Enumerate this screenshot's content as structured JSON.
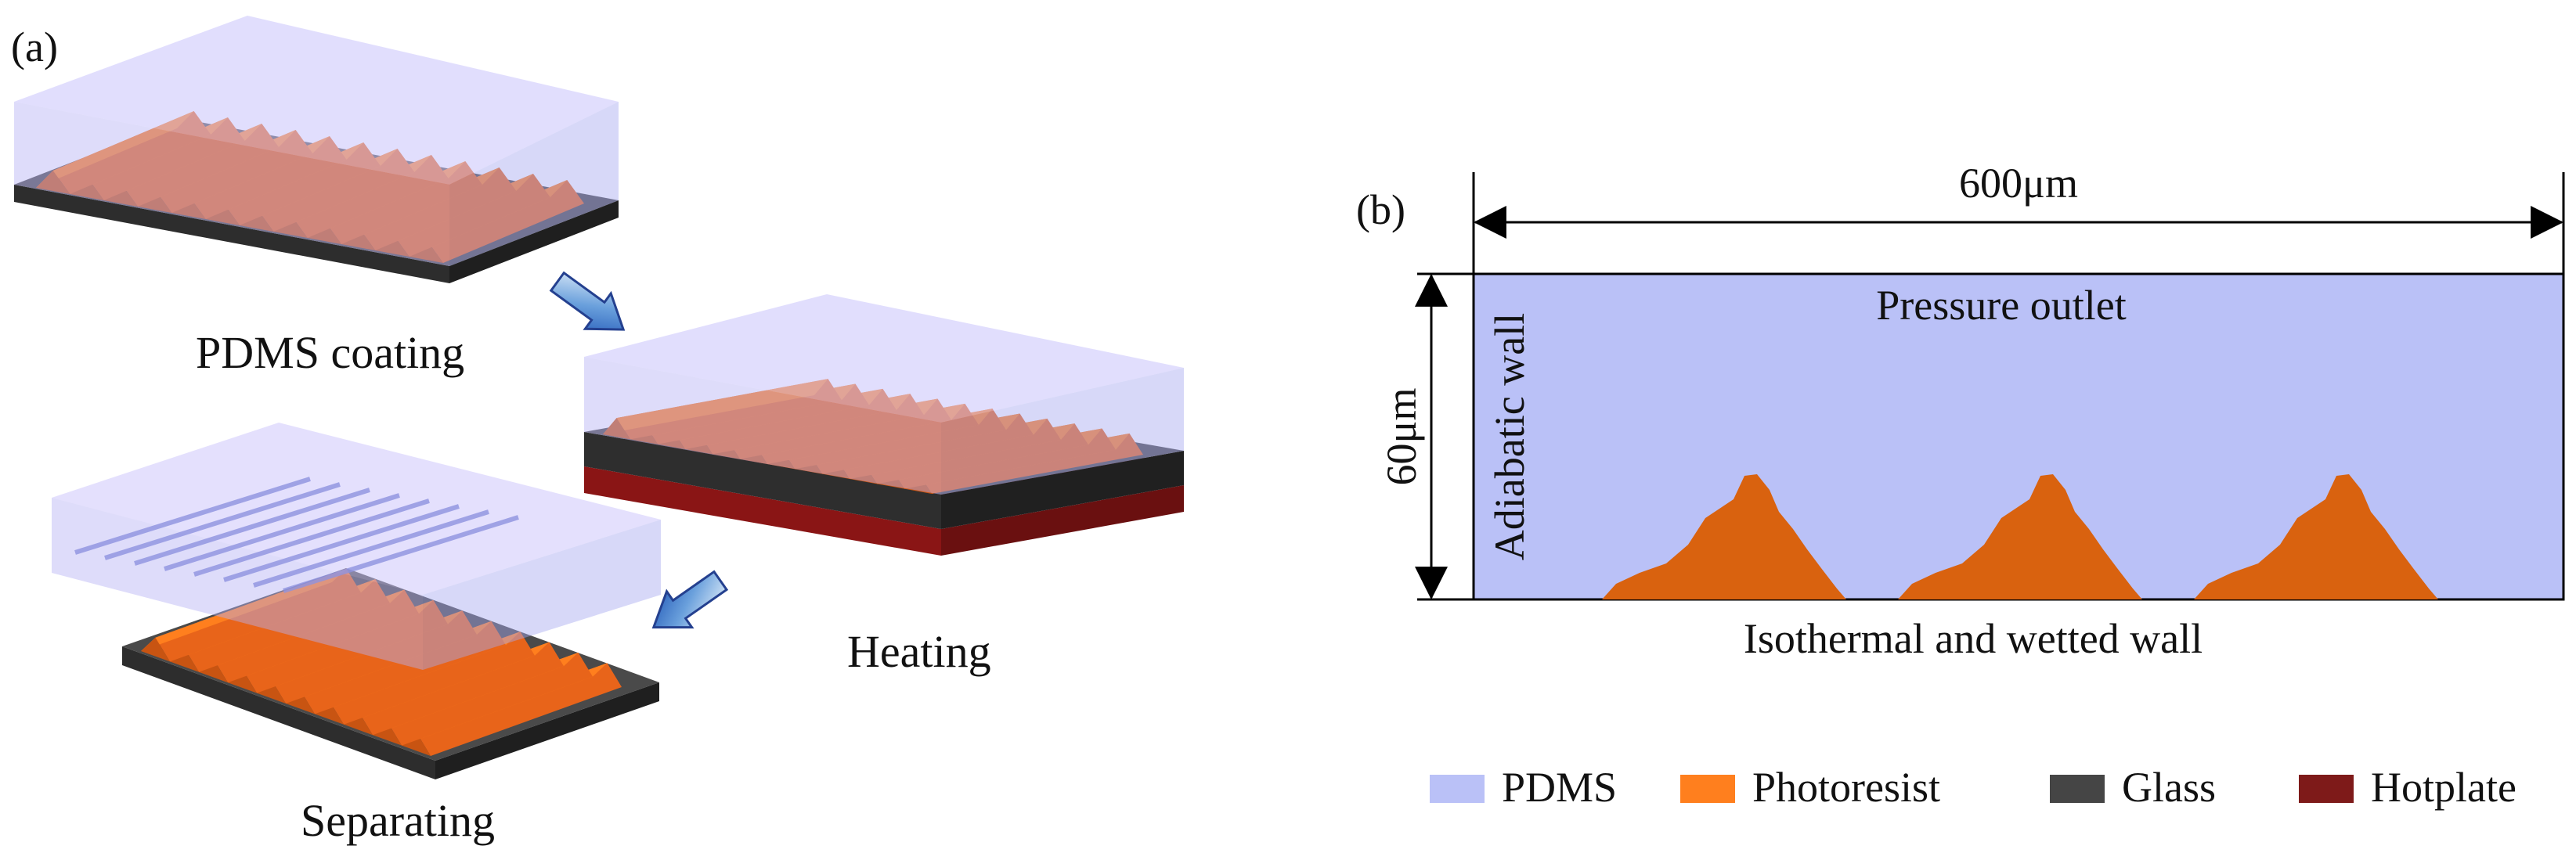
{
  "colors": {
    "pdms": "#bac1f7",
    "photoresist": "#ff7f1e",
    "photoresist_profile": "#d9620f",
    "glass": "#454545",
    "hotplate": "#7e1a19",
    "arrow": "#2d6fc9"
  },
  "panel_a": {
    "label": "(a)",
    "steps": {
      "coating": "PDMS coating",
      "heating": "Heating",
      "separating": "Separating"
    },
    "arrow_icon": "process-arrow-icon"
  },
  "panel_b": {
    "label": "(b)",
    "width_dimension": "600μm",
    "height_dimension": "60μm",
    "top_boundary": "Pressure outlet",
    "left_boundary": "Adiabatic wall",
    "bottom_boundary": "Isothermal and wetted wall",
    "bump_count": 3
  },
  "legend": [
    {
      "label": "PDMS",
      "color": "#bac1f7"
    },
    {
      "label": "Photoresist",
      "color": "#ff7f1e"
    },
    {
      "label": "Glass",
      "color": "#454545"
    },
    {
      "label": "Hotplate",
      "color": "#7e1a19"
    }
  ]
}
